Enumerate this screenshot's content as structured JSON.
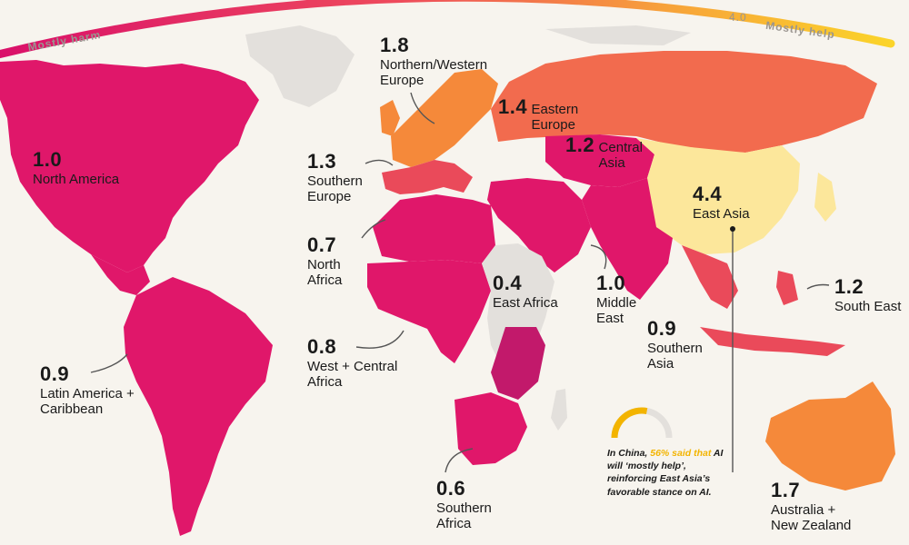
{
  "colors": {
    "ocean": "#f7f4ee",
    "nodata": "#e3e0dc",
    "score_0_4_to_1_0": "#e0176a",
    "score_1_1_to_1_3": "#ea4a5a",
    "score_1_4_to_1_5": "#f26b4e",
    "score_1_6_to_1_8": "#f5893a",
    "score_4_4": "#fce79b",
    "scale_low": "#d90f6a",
    "scale_high": "#fbd42a"
  },
  "scale": {
    "left_label": "Mostly harm",
    "right_label": "Mostly help",
    "max_value": "4.0"
  },
  "regions": [
    {
      "key": "north_america",
      "value": "1.0",
      "name": "North America"
    },
    {
      "key": "northern_western_europe",
      "value": "1.8",
      "name": "Northern/Western\nEurope"
    },
    {
      "key": "eastern_europe",
      "value": "1.4",
      "name": "Eastern\nEurope"
    },
    {
      "key": "central_asia",
      "value": "1.2",
      "name": "Central\nAsia"
    },
    {
      "key": "southern_europe",
      "value": "1.3",
      "name": "Southern\nEurope"
    },
    {
      "key": "east_asia",
      "value": "4.4",
      "name": "East Asia"
    },
    {
      "key": "north_africa",
      "value": "0.7",
      "name": "North\nAfrica"
    },
    {
      "key": "east_africa",
      "value": "0.4",
      "name": "East Africa"
    },
    {
      "key": "middle_east",
      "value": "1.0",
      "name": "Middle\nEast"
    },
    {
      "key": "south_east_asia",
      "value": "1.2",
      "name": "South East"
    },
    {
      "key": "southern_asia",
      "value": "0.9",
      "name": "Southern\nAsia"
    },
    {
      "key": "west_central_africa",
      "value": "0.8",
      "name": "West + Central\nAfrica"
    },
    {
      "key": "latin_america",
      "value": "0.9",
      "name": "Latin America +\nCaribbean"
    },
    {
      "key": "southern_africa",
      "value": "0.6",
      "name": "Southern\nAfrica"
    },
    {
      "key": "australia_nz",
      "value": "1.7",
      "name": "Australia +\nNew Zealand"
    }
  ],
  "callout": {
    "pre": "In China, ",
    "highlight": "56% said that",
    "post": " AI will ‘mostly help’, reinforcing East Asia’s favorable stance on AI.",
    "gauge_fraction": 0.56
  }
}
